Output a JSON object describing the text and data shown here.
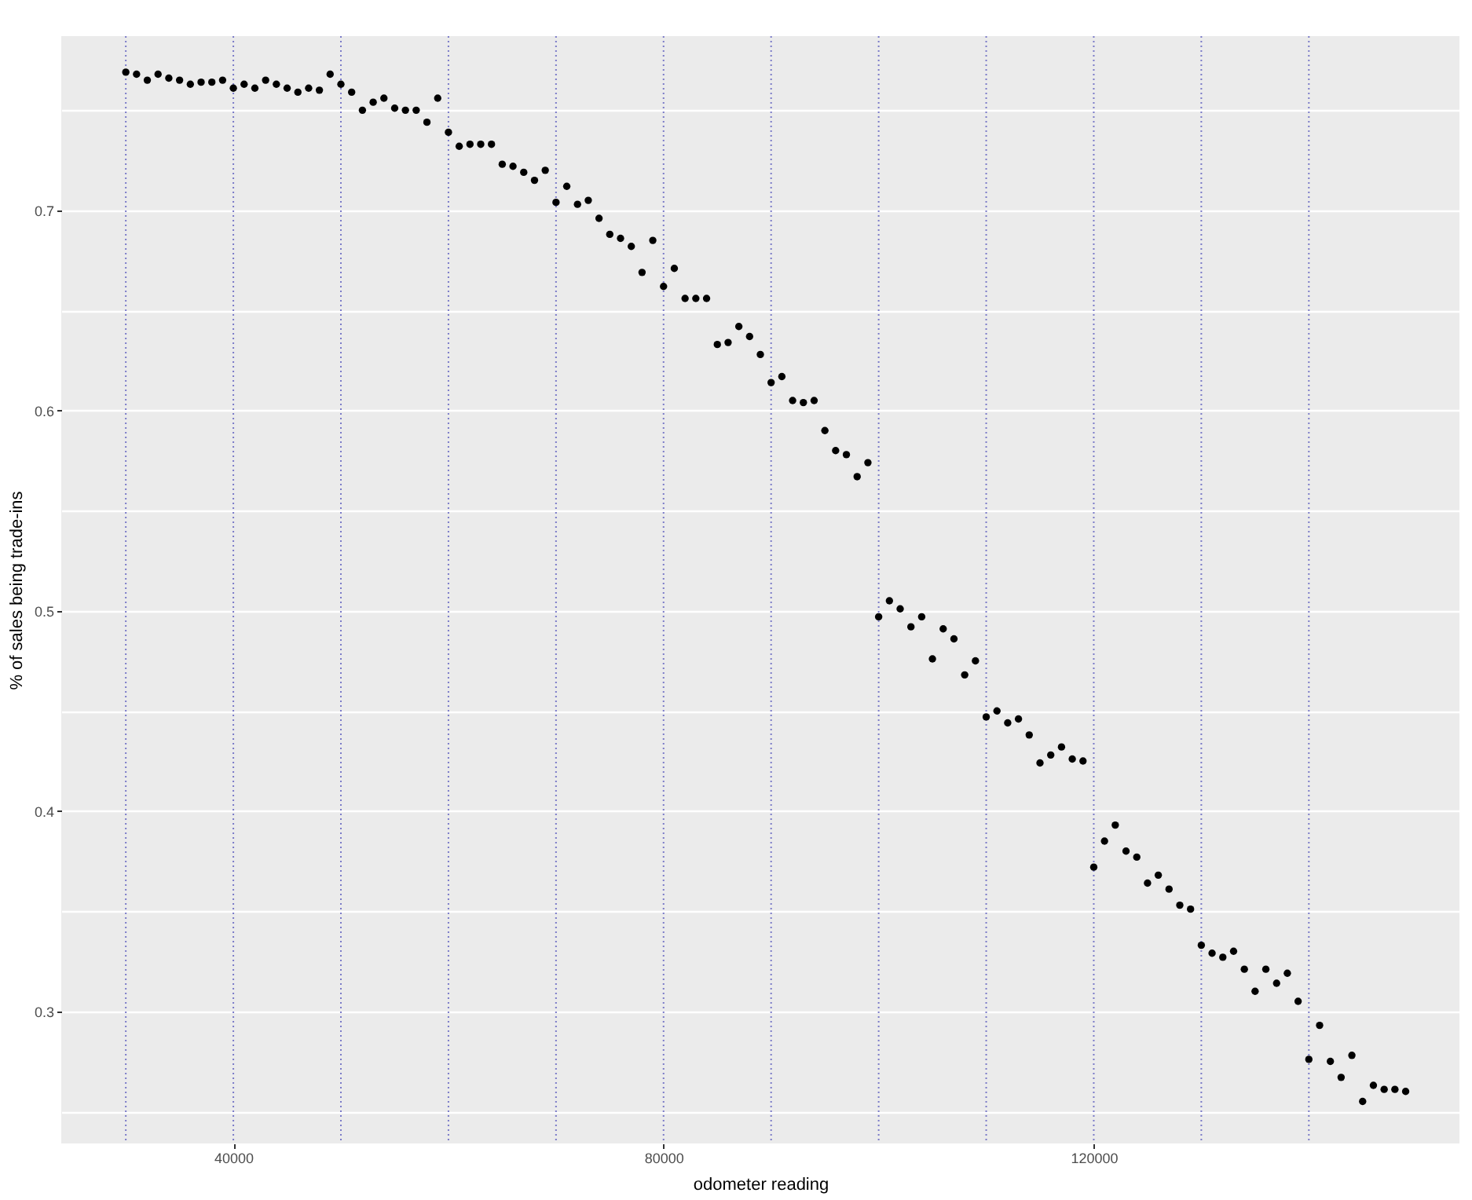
{
  "chart_data": {
    "type": "scatter",
    "xlabel": "odometer reading",
    "ylabel": "% of sales being trade-ins",
    "x": [
      30000,
      31000,
      32000,
      33000,
      34000,
      35000,
      36000,
      37000,
      38000,
      39000,
      40000,
      41000,
      42000,
      43000,
      44000,
      45000,
      46000,
      47000,
      48000,
      49000,
      50000,
      51000,
      52000,
      53000,
      54000,
      55000,
      56000,
      57000,
      58000,
      59000,
      60000,
      61000,
      62000,
      63000,
      64000,
      65000,
      66000,
      67000,
      68000,
      69000,
      70000,
      71000,
      72000,
      73000,
      74000,
      75000,
      76000,
      77000,
      78000,
      79000,
      80000,
      81000,
      82000,
      83000,
      84000,
      85000,
      86000,
      87000,
      88000,
      89000,
      90000,
      91000,
      92000,
      93000,
      94000,
      95000,
      96000,
      97000,
      98000,
      99000,
      100000,
      101000,
      102000,
      103000,
      104000,
      105000,
      106000,
      107000,
      108000,
      109000,
      110000,
      111000,
      112000,
      113000,
      114000,
      115000,
      116000,
      117000,
      118000,
      119000,
      120000,
      121000,
      122000,
      123000,
      124000,
      125000,
      126000,
      127000,
      128000,
      129000,
      130000,
      131000,
      132000,
      133000,
      134000,
      135000,
      136000,
      137000,
      138000,
      139000,
      140000,
      141000,
      142000,
      143000,
      144000,
      145000,
      146000,
      147000,
      148000,
      149000
    ],
    "series": [
      {
        "color": "#000000",
        "values": [
          0.769,
          0.768,
          0.765,
          0.768,
          0.766,
          0.765,
          0.763,
          0.764,
          0.764,
          0.765,
          0.761,
          0.763,
          0.761,
          0.765,
          0.763,
          0.761,
          0.759,
          0.761,
          0.76,
          0.768,
          0.763,
          0.759,
          0.75,
          0.754,
          0.756,
          0.751,
          0.75,
          0.75,
          0.744,
          0.756,
          0.739,
          0.732,
          0.733,
          0.733,
          0.733,
          0.723,
          0.722,
          0.719,
          0.715,
          0.72,
          0.704,
          0.712,
          0.703,
          0.705,
          0.696,
          0.688,
          0.686,
          0.682,
          0.669,
          0.685,
          0.662,
          0.671,
          0.656,
          0.656,
          0.656,
          0.633,
          0.634,
          0.642,
          0.637,
          0.628,
          0.614,
          0.617,
          0.605,
          0.604,
          0.605,
          0.59,
          0.58,
          0.578,
          0.567,
          0.574,
          0.497,
          0.505,
          0.501,
          0.492,
          0.497,
          0.476,
          0.491,
          0.486,
          0.468,
          0.475,
          0.447,
          0.45,
          0.444,
          0.446,
          0.438,
          0.424,
          0.428,
          0.432,
          0.426,
          0.425,
          0.372,
          0.385,
          0.393,
          0.38,
          0.377,
          0.364,
          0.368,
          0.361,
          0.353,
          0.351,
          0.333,
          0.329,
          0.327,
          0.33,
          0.321,
          0.31,
          0.321,
          0.314,
          0.319,
          0.305,
          0.276,
          0.293,
          0.275,
          0.267,
          0.278,
          0.255,
          0.263,
          0.261,
          0.261,
          0.26
        ]
      }
    ],
    "xlim": [
      24000,
      154000
    ],
    "xticks": [
      40000,
      80000,
      120000
    ],
    "ylim": [
      0.234,
      0.787
    ],
    "yticks": [
      {
        "value": 0.25,
        "label": null
      },
      0.3,
      {
        "value": 0.35,
        "label": null
      },
      0.4,
      {
        "value": 0.45,
        "label": null
      },
      0.5,
      {
        "value": 0.55,
        "label": null
      },
      0.6,
      {
        "value": 0.65,
        "label": null
      },
      0.7,
      {
        "value": 0.75,
        "label": null
      }
    ],
    "grid": "y",
    "marker": "circle",
    "ref_lines": [
      {
        "axis": "x",
        "value": 30000,
        "color": "#7b7bc8",
        "line_style": "dotted"
      },
      {
        "axis": "x",
        "value": 40000,
        "color": "#7b7bc8",
        "line_style": "dotted"
      },
      {
        "axis": "x",
        "value": 50000,
        "color": "#7b7bc8",
        "line_style": "dotted"
      },
      {
        "axis": "x",
        "value": 60000,
        "color": "#7b7bc8",
        "line_style": "dotted"
      },
      {
        "axis": "x",
        "value": 70000,
        "color": "#7b7bc8",
        "line_style": "dotted"
      },
      {
        "axis": "x",
        "value": 80000,
        "color": "#7b7bc8",
        "line_style": "dotted"
      },
      {
        "axis": "x",
        "value": 90000,
        "color": "#7b7bc8",
        "line_style": "dotted"
      },
      {
        "axis": "x",
        "value": 100000,
        "color": "#7b7bc8",
        "line_style": "dotted"
      },
      {
        "axis": "x",
        "value": 110000,
        "color": "#7b7bc8",
        "line_style": "dotted"
      },
      {
        "axis": "x",
        "value": 120000,
        "color": "#7b7bc8",
        "line_style": "dotted"
      },
      {
        "axis": "x",
        "value": 130000,
        "color": "#7b7bc8",
        "line_style": "dotted"
      },
      {
        "axis": "x",
        "value": 140000,
        "color": "#7b7bc8",
        "line_style": "dotted"
      }
    ]
  }
}
